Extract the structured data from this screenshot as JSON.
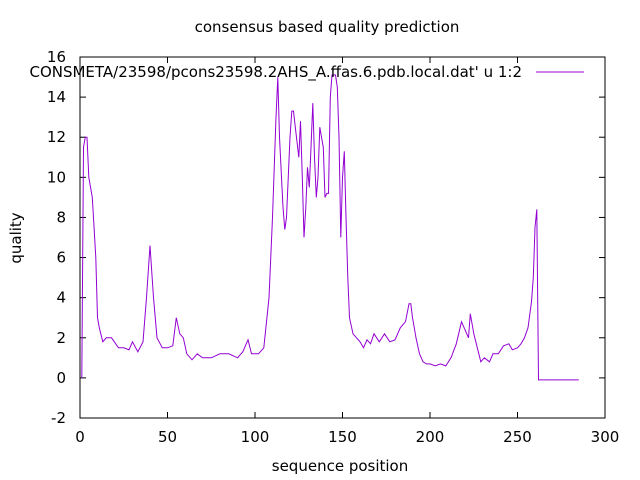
{
  "chart_data": {
    "type": "line",
    "title": "consensus based quality prediction",
    "xlabel": "sequence position",
    "ylabel": "quality",
    "xlim": [
      0,
      300
    ],
    "ylim": [
      -2,
      16
    ],
    "xticks": [
      0,
      50,
      100,
      150,
      200,
      250,
      300
    ],
    "yticks": [
      -2,
      0,
      2,
      4,
      6,
      8,
      10,
      12,
      14,
      16
    ],
    "grid": false,
    "legend": "top-right",
    "series": [
      {
        "name": "CONSMETA/23598/pcons23598.2AHS_A.ffas.6.pdb.local.dat' u 1:2",
        "color": "#9400d3",
        "points": [
          [
            1,
            0
          ],
          [
            2,
            11.5
          ],
          [
            3,
            12
          ],
          [
            4,
            12
          ],
          [
            5,
            10
          ],
          [
            7,
            9
          ],
          [
            9,
            6
          ],
          [
            10,
            3
          ],
          [
            11,
            2.5
          ],
          [
            13,
            1.8
          ],
          [
            15,
            2
          ],
          [
            18,
            2
          ],
          [
            22,
            1.5
          ],
          [
            25,
            1.5
          ],
          [
            28,
            1.4
          ],
          [
            30,
            1.8
          ],
          [
            33,
            1.3
          ],
          [
            36,
            1.8
          ],
          [
            38,
            4
          ],
          [
            40,
            6.6
          ],
          [
            42,
            4
          ],
          [
            44,
            2
          ],
          [
            47,
            1.5
          ],
          [
            50,
            1.5
          ],
          [
            53,
            1.6
          ],
          [
            55,
            3
          ],
          [
            57,
            2.2
          ],
          [
            59,
            2
          ],
          [
            61,
            1.2
          ],
          [
            64,
            0.9
          ],
          [
            67,
            1.2
          ],
          [
            70,
            1
          ],
          [
            75,
            1
          ],
          [
            80,
            1.2
          ],
          [
            85,
            1.2
          ],
          [
            90,
            1
          ],
          [
            93,
            1.3
          ],
          [
            96,
            1.9
          ],
          [
            98,
            1.2
          ],
          [
            102,
            1.2
          ],
          [
            105,
            1.5
          ],
          [
            108,
            4
          ],
          [
            110,
            8
          ],
          [
            112,
            13
          ],
          [
            113,
            15
          ],
          [
            114,
            12
          ],
          [
            116,
            8.5
          ],
          [
            117,
            7.4
          ],
          [
            118,
            8
          ],
          [
            120,
            12
          ],
          [
            121,
            13.3
          ],
          [
            122,
            13.3
          ],
          [
            123,
            12.5
          ],
          [
            125,
            11
          ],
          [
            126,
            12.8
          ],
          [
            127,
            10
          ],
          [
            128,
            7
          ],
          [
            129,
            8.5
          ],
          [
            130,
            10.5
          ],
          [
            131,
            9.5
          ],
          [
            132,
            11.5
          ],
          [
            133,
            13.7
          ],
          [
            134,
            11
          ],
          [
            135,
            9
          ],
          [
            136,
            10
          ],
          [
            137,
            12.5
          ],
          [
            138,
            12
          ],
          [
            139,
            11.5
          ],
          [
            140,
            9
          ],
          [
            141,
            9.2
          ],
          [
            142,
            9.2
          ],
          [
            143,
            14
          ],
          [
            144,
            15.1
          ],
          [
            146,
            15.1
          ],
          [
            147,
            14.5
          ],
          [
            148,
            12
          ],
          [
            149,
            7
          ],
          [
            150,
            10
          ],
          [
            151,
            11.3
          ],
          [
            152,
            8
          ],
          [
            153,
            5
          ],
          [
            154,
            3
          ],
          [
            156,
            2.2
          ],
          [
            158,
            2
          ],
          [
            160,
            1.8
          ],
          [
            162,
            1.5
          ],
          [
            164,
            1.9
          ],
          [
            166,
            1.7
          ],
          [
            168,
            2.2
          ],
          [
            171,
            1.8
          ],
          [
            174,
            2.2
          ],
          [
            177,
            1.8
          ],
          [
            180,
            1.9
          ],
          [
            183,
            2.5
          ],
          [
            186,
            2.8
          ],
          [
            188,
            3.7
          ],
          [
            189,
            3.7
          ],
          [
            190,
            3
          ],
          [
            192,
            2
          ],
          [
            194,
            1.2
          ],
          [
            196,
            0.8
          ],
          [
            198,
            0.7
          ],
          [
            200,
            0.7
          ],
          [
            203,
            0.6
          ],
          [
            206,
            0.7
          ],
          [
            209,
            0.6
          ],
          [
            212,
            1
          ],
          [
            215,
            1.7
          ],
          [
            218,
            2.8
          ],
          [
            220,
            2.4
          ],
          [
            222,
            2
          ],
          [
            223,
            3.2
          ],
          [
            225,
            2.2
          ],
          [
            227,
            1.5
          ],
          [
            229,
            0.8
          ],
          [
            231,
            1
          ],
          [
            234,
            0.8
          ],
          [
            236,
            1.2
          ],
          [
            239,
            1.2
          ],
          [
            242,
            1.6
          ],
          [
            245,
            1.7
          ],
          [
            247,
            1.4
          ],
          [
            250,
            1.5
          ],
          [
            252,
            1.7
          ],
          [
            254,
            2
          ],
          [
            256,
            2.5
          ],
          [
            258,
            3.8
          ],
          [
            259,
            5
          ],
          [
            260,
            7.5
          ],
          [
            261,
            8.4
          ],
          [
            262,
            -0.1
          ],
          [
            265,
            -0.1
          ],
          [
            270,
            -0.1
          ],
          [
            275,
            -0.1
          ],
          [
            280,
            -0.1
          ],
          [
            285,
            -0.1
          ]
        ]
      }
    ]
  }
}
